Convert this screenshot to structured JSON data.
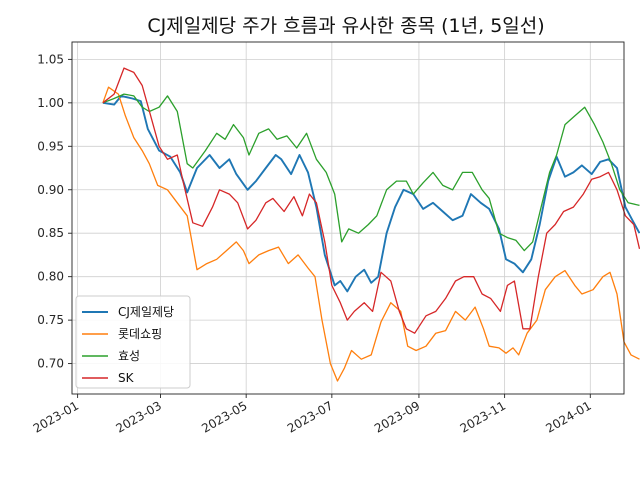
{
  "chart_data": {
    "type": "line",
    "title": "CJ제일제당 주가 흐름과 유사한 종목 (1년, 5일선)",
    "xlabel": "",
    "ylabel": "",
    "x_range": [
      "2022-12-28",
      "2024-01-25"
    ],
    "ylim": [
      0.665,
      1.07
    ],
    "grid": true,
    "legend_position": "lower-left",
    "x_ticks": [
      "2023-01",
      "2023-03",
      "2023-05",
      "2023-07",
      "2023-09",
      "2023-11",
      "2024-01"
    ],
    "y_ticks": [
      "0.70",
      "0.75",
      "0.80",
      "0.85",
      "0.90",
      "0.95",
      "1.00",
      "1.05"
    ],
    "series": [
      {
        "name": "CJ제일제당",
        "color": "#1f77b4",
        "points": [
          [
            "2023-01-19",
            1.0
          ],
          [
            "2023-01-27",
            0.998
          ],
          [
            "2023-02-01",
            1.008
          ],
          [
            "2023-02-09",
            1.005
          ],
          [
            "2023-02-15",
            1.002
          ],
          [
            "2023-02-20",
            0.97
          ],
          [
            "2023-02-28",
            0.945
          ],
          [
            "2023-03-08",
            0.938
          ],
          [
            "2023-03-15",
            0.92
          ],
          [
            "2023-03-20",
            0.897
          ],
          [
            "2023-03-27",
            0.925
          ],
          [
            "2023-04-05",
            0.94
          ],
          [
            "2023-04-12",
            0.925
          ],
          [
            "2023-04-19",
            0.935
          ],
          [
            "2023-04-24",
            0.918
          ],
          [
            "2023-05-02",
            0.9
          ],
          [
            "2023-05-08",
            0.91
          ],
          [
            "2023-05-15",
            0.925
          ],
          [
            "2023-05-22",
            0.94
          ],
          [
            "2023-05-26",
            0.935
          ],
          [
            "2023-06-02",
            0.918
          ],
          [
            "2023-06-08",
            0.94
          ],
          [
            "2023-06-14",
            0.92
          ],
          [
            "2023-06-20",
            0.88
          ],
          [
            "2023-06-26",
            0.825
          ],
          [
            "2023-07-03",
            0.79
          ],
          [
            "2023-07-07",
            0.795
          ],
          [
            "2023-07-12",
            0.783
          ],
          [
            "2023-07-18",
            0.8
          ],
          [
            "2023-07-24",
            0.808
          ],
          [
            "2023-07-29",
            0.793
          ],
          [
            "2023-08-03",
            0.8
          ],
          [
            "2023-08-09",
            0.85
          ],
          [
            "2023-08-15",
            0.88
          ],
          [
            "2023-08-21",
            0.9
          ],
          [
            "2023-08-28",
            0.895
          ],
          [
            "2023-09-04",
            0.878
          ],
          [
            "2023-09-11",
            0.885
          ],
          [
            "2023-09-18",
            0.875
          ],
          [
            "2023-09-25",
            0.865
          ],
          [
            "2023-10-02",
            0.87
          ],
          [
            "2023-10-08",
            0.895
          ],
          [
            "2023-10-15",
            0.885
          ],
          [
            "2023-10-21",
            0.878
          ],
          [
            "2023-10-28",
            0.855
          ],
          [
            "2023-11-02",
            0.82
          ],
          [
            "2023-11-08",
            0.815
          ],
          [
            "2023-11-14",
            0.805
          ],
          [
            "2023-11-20",
            0.82
          ],
          [
            "2023-11-26",
            0.86
          ],
          [
            "2023-12-02",
            0.91
          ],
          [
            "2023-12-08",
            0.938
          ],
          [
            "2023-12-14",
            0.915
          ],
          [
            "2023-12-20",
            0.92
          ],
          [
            "2023-12-26",
            0.928
          ],
          [
            "2024-01-02",
            0.918
          ],
          [
            "2024-01-08",
            0.932
          ],
          [
            "2024-01-14",
            0.935
          ],
          [
            "2024-01-20",
            0.925
          ],
          [
            "2024-01-26",
            0.88
          ],
          [
            "2024-01-31",
            0.865
          ],
          [
            "2024-02-05",
            0.85
          ]
        ]
      },
      {
        "name": "롯데쇼핑",
        "color": "#ff7f0e",
        "points": [
          [
            "2023-01-19",
            1.0
          ],
          [
            "2023-01-23",
            1.018
          ],
          [
            "2023-01-30",
            1.01
          ],
          [
            "2023-02-04",
            0.985
          ],
          [
            "2023-02-10",
            0.96
          ],
          [
            "2023-02-16",
            0.945
          ],
          [
            "2023-02-21",
            0.93
          ],
          [
            "2023-02-27",
            0.905
          ],
          [
            "2023-03-06",
            0.9
          ],
          [
            "2023-03-13",
            0.885
          ],
          [
            "2023-03-20",
            0.87
          ],
          [
            "2023-03-27",
            0.808
          ],
          [
            "2023-04-03",
            0.815
          ],
          [
            "2023-04-10",
            0.82
          ],
          [
            "2023-04-17",
            0.83
          ],
          [
            "2023-04-24",
            0.84
          ],
          [
            "2023-04-29",
            0.83
          ],
          [
            "2023-05-03",
            0.815
          ],
          [
            "2023-05-10",
            0.825
          ],
          [
            "2023-05-17",
            0.83
          ],
          [
            "2023-05-24",
            0.834
          ],
          [
            "2023-05-31",
            0.815
          ],
          [
            "2023-06-07",
            0.825
          ],
          [
            "2023-06-14",
            0.81
          ],
          [
            "2023-06-19",
            0.8
          ],
          [
            "2023-06-24",
            0.75
          ],
          [
            "2023-06-30",
            0.7
          ],
          [
            "2023-07-05",
            0.68
          ],
          [
            "2023-07-10",
            0.695
          ],
          [
            "2023-07-15",
            0.715
          ],
          [
            "2023-07-22",
            0.705
          ],
          [
            "2023-07-29",
            0.71
          ],
          [
            "2023-08-05",
            0.748
          ],
          [
            "2023-08-12",
            0.77
          ],
          [
            "2023-08-19",
            0.76
          ],
          [
            "2023-08-24",
            0.72
          ],
          [
            "2023-08-30",
            0.715
          ],
          [
            "2023-09-06",
            0.72
          ],
          [
            "2023-09-13",
            0.735
          ],
          [
            "2023-09-20",
            0.738
          ],
          [
            "2023-09-27",
            0.76
          ],
          [
            "2023-10-04",
            0.75
          ],
          [
            "2023-10-11",
            0.765
          ],
          [
            "2023-10-17",
            0.74
          ],
          [
            "2023-10-21",
            0.72
          ],
          [
            "2023-10-28",
            0.718
          ],
          [
            "2023-11-02",
            0.712
          ],
          [
            "2023-11-07",
            0.718
          ],
          [
            "2023-11-11",
            0.71
          ],
          [
            "2023-11-17",
            0.735
          ],
          [
            "2023-11-24",
            0.75
          ],
          [
            "2023-11-30",
            0.785
          ],
          [
            "2023-12-07",
            0.8
          ],
          [
            "2023-12-14",
            0.807
          ],
          [
            "2023-12-21",
            0.79
          ],
          [
            "2023-12-26",
            0.78
          ],
          [
            "2024-01-03",
            0.785
          ],
          [
            "2024-01-10",
            0.8
          ],
          [
            "2024-01-15",
            0.805
          ],
          [
            "2024-01-20",
            0.78
          ],
          [
            "2024-01-25",
            0.725
          ],
          [
            "2024-01-30",
            0.71
          ],
          [
            "2024-02-05",
            0.705
          ]
        ]
      },
      {
        "name": "효성",
        "color": "#2ca02c",
        "points": [
          [
            "2023-01-19",
            1.0
          ],
          [
            "2023-01-27",
            1.005
          ],
          [
            "2023-02-03",
            1.01
          ],
          [
            "2023-02-10",
            1.008
          ],
          [
            "2023-02-16",
            0.995
          ],
          [
            "2023-02-21",
            0.99
          ],
          [
            "2023-02-28",
            0.995
          ],
          [
            "2023-03-06",
            1.008
          ],
          [
            "2023-03-13",
            0.99
          ],
          [
            "2023-03-20",
            0.93
          ],
          [
            "2023-03-24",
            0.925
          ],
          [
            "2023-04-02",
            0.945
          ],
          [
            "2023-04-10",
            0.965
          ],
          [
            "2023-04-16",
            0.958
          ],
          [
            "2023-04-22",
            0.975
          ],
          [
            "2023-04-29",
            0.96
          ],
          [
            "2023-05-03",
            0.94
          ],
          [
            "2023-05-10",
            0.965
          ],
          [
            "2023-05-17",
            0.97
          ],
          [
            "2023-05-23",
            0.958
          ],
          [
            "2023-05-30",
            0.962
          ],
          [
            "2023-06-06",
            0.948
          ],
          [
            "2023-06-13",
            0.965
          ],
          [
            "2023-06-20",
            0.935
          ],
          [
            "2023-06-27",
            0.92
          ],
          [
            "2023-07-03",
            0.895
          ],
          [
            "2023-07-08",
            0.84
          ],
          [
            "2023-07-13",
            0.855
          ],
          [
            "2023-07-20",
            0.85
          ],
          [
            "2023-07-27",
            0.86
          ],
          [
            "2023-08-02",
            0.87
          ],
          [
            "2023-08-09",
            0.9
          ],
          [
            "2023-08-16",
            0.91
          ],
          [
            "2023-08-23",
            0.91
          ],
          [
            "2023-08-28",
            0.895
          ],
          [
            "2023-09-04",
            0.908
          ],
          [
            "2023-09-11",
            0.92
          ],
          [
            "2023-09-18",
            0.905
          ],
          [
            "2023-09-25",
            0.9
          ],
          [
            "2023-10-02",
            0.92
          ],
          [
            "2023-10-09",
            0.92
          ],
          [
            "2023-10-16",
            0.9
          ],
          [
            "2023-10-21",
            0.89
          ],
          [
            "2023-10-28",
            0.85
          ],
          [
            "2023-11-03",
            0.845
          ],
          [
            "2023-11-09",
            0.842
          ],
          [
            "2023-11-15",
            0.83
          ],
          [
            "2023-11-21",
            0.84
          ],
          [
            "2023-11-27",
            0.88
          ],
          [
            "2023-12-03",
            0.92
          ],
          [
            "2023-12-08",
            0.94
          ],
          [
            "2023-12-14",
            0.975
          ],
          [
            "2023-12-21",
            0.985
          ],
          [
            "2023-12-28",
            0.995
          ],
          [
            "2024-01-04",
            0.975
          ],
          [
            "2024-01-10",
            0.955
          ],
          [
            "2024-01-16",
            0.93
          ],
          [
            "2024-01-22",
            0.9
          ],
          [
            "2024-01-28",
            0.885
          ],
          [
            "2024-02-05",
            0.882
          ]
        ]
      },
      {
        "name": "SK",
        "color": "#d62728",
        "points": [
          [
            "2023-01-19",
            1.0
          ],
          [
            "2023-01-27",
            1.01
          ],
          [
            "2023-02-03",
            1.04
          ],
          [
            "2023-02-10",
            1.035
          ],
          [
            "2023-02-16",
            1.02
          ],
          [
            "2023-02-22",
            0.985
          ],
          [
            "2023-02-28",
            0.95
          ],
          [
            "2023-03-06",
            0.935
          ],
          [
            "2023-03-13",
            0.94
          ],
          [
            "2023-03-17",
            0.91
          ],
          [
            "2023-03-24",
            0.862
          ],
          [
            "2023-03-31",
            0.858
          ],
          [
            "2023-04-07",
            0.88
          ],
          [
            "2023-04-12",
            0.9
          ],
          [
            "2023-04-19",
            0.895
          ],
          [
            "2023-04-25",
            0.885
          ],
          [
            "2023-05-02",
            0.855
          ],
          [
            "2023-05-08",
            0.865
          ],
          [
            "2023-05-15",
            0.885
          ],
          [
            "2023-05-20",
            0.89
          ],
          [
            "2023-05-28",
            0.875
          ],
          [
            "2023-06-04",
            0.892
          ],
          [
            "2023-06-10",
            0.87
          ],
          [
            "2023-06-15",
            0.895
          ],
          [
            "2023-06-20",
            0.885
          ],
          [
            "2023-06-26",
            0.84
          ],
          [
            "2023-07-01",
            0.79
          ],
          [
            "2023-07-07",
            0.77
          ],
          [
            "2023-07-12",
            0.75
          ],
          [
            "2023-07-17",
            0.76
          ],
          [
            "2023-07-24",
            0.77
          ],
          [
            "2023-07-30",
            0.76
          ],
          [
            "2023-08-05",
            0.805
          ],
          [
            "2023-08-12",
            0.795
          ],
          [
            "2023-08-18",
            0.76
          ],
          [
            "2023-08-23",
            0.74
          ],
          [
            "2023-08-29",
            0.735
          ],
          [
            "2023-09-06",
            0.755
          ],
          [
            "2023-09-13",
            0.76
          ],
          [
            "2023-09-20",
            0.775
          ],
          [
            "2023-09-27",
            0.795
          ],
          [
            "2023-10-03",
            0.8
          ],
          [
            "2023-10-10",
            0.8
          ],
          [
            "2023-10-16",
            0.78
          ],
          [
            "2023-10-22",
            0.775
          ],
          [
            "2023-10-29",
            0.76
          ],
          [
            "2023-11-03",
            0.79
          ],
          [
            "2023-11-08",
            0.795
          ],
          [
            "2023-11-14",
            0.74
          ],
          [
            "2023-11-19",
            0.74
          ],
          [
            "2023-11-25",
            0.8
          ],
          [
            "2023-12-01",
            0.85
          ],
          [
            "2023-12-07",
            0.86
          ],
          [
            "2023-12-13",
            0.875
          ],
          [
            "2023-12-20",
            0.88
          ],
          [
            "2023-12-27",
            0.895
          ],
          [
            "2024-01-02",
            0.912
          ],
          [
            "2024-01-08",
            0.915
          ],
          [
            "2024-01-14",
            0.92
          ],
          [
            "2024-01-20",
            0.9
          ],
          [
            "2024-01-26",
            0.87
          ],
          [
            "2024-02-01",
            0.86
          ],
          [
            "2024-02-05",
            0.832
          ]
        ]
      }
    ]
  }
}
